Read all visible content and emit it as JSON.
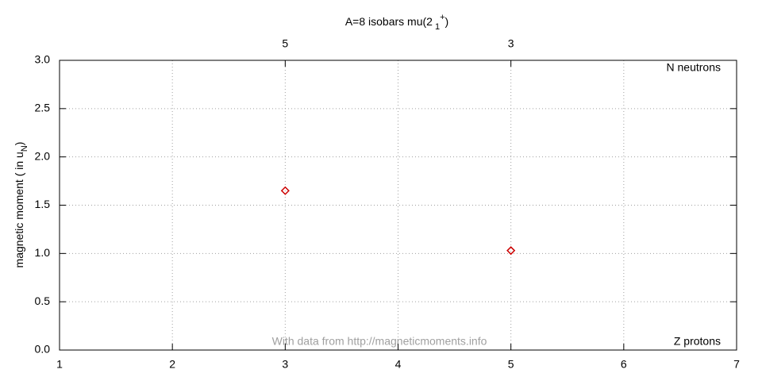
{
  "chart_data": {
    "type": "scatter",
    "title": [
      "A=8 isobars mu(2",
      "1",
      "+",
      ")"
    ],
    "y_label": [
      "magnetic moment ( in u",
      "N",
      ")"
    ],
    "annotations": [
      "N neutrons",
      "Z protons",
      "With data from http://magneticmoments.info"
    ],
    "x": [
      3,
      5
    ],
    "values": [
      1.65,
      1.03
    ],
    "color": "#cc0000",
    "xlim": [
      1,
      7
    ],
    "xticks": [
      1,
      2,
      3,
      4,
      5,
      6,
      7
    ],
    "x2lim": [
      7,
      1
    ],
    "x2ticks": [
      5,
      3
    ],
    "ylim": [
      0,
      3
    ],
    "yticks": [
      {
        "value": 0,
        "label": "0.0"
      },
      0.5,
      {
        "value": 1,
        "label": "1.0"
      },
      1.5,
      {
        "value": 2,
        "label": "2.0"
      },
      2.5,
      {
        "value": 3,
        "label": "3.0"
      }
    ],
    "grid": true
  }
}
